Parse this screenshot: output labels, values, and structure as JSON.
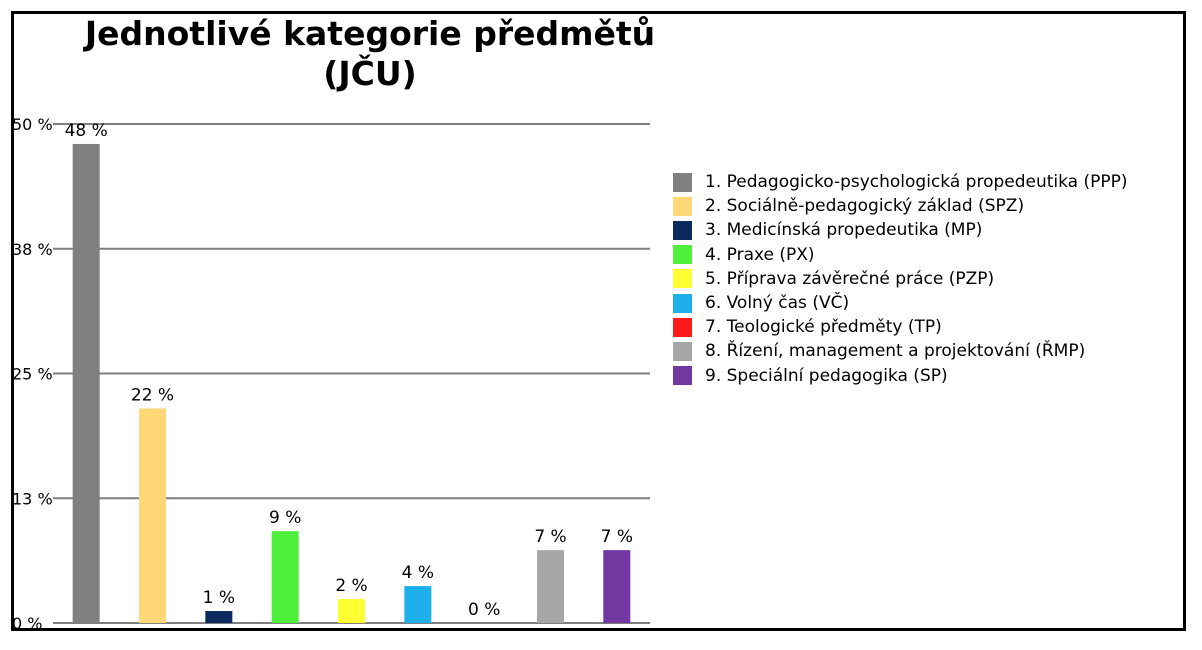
{
  "chart_data": {
    "type": "bar",
    "title": "Jednotlivé kategorie předmětů (JČU)",
    "title_lines": [
      "Jednotlivé kategorie předmětů",
      "(JČU)"
    ],
    "xlabel": "",
    "ylabel": "",
    "ylim": [
      0,
      50
    ],
    "yticks": [
      {
        "value": 0,
        "label": "0 %"
      },
      {
        "value": 12.5,
        "label": "13 %"
      },
      {
        "value": 25,
        "label": "25 %"
      },
      {
        "value": 37.5,
        "label": "38 %"
      },
      {
        "value": 50,
        "label": "50 %"
      }
    ],
    "grid": true,
    "legend_position": "right",
    "categories": [
      "1. Pedagogicko-psychologická propedeutika (PPP)",
      "2. Sociálně-pedagogický základ (SPZ)",
      "3. Medicínská propedeutika (MP)",
      "4. Praxe (PX)",
      "5. Příprava závěrečné práce (PZP)",
      "6. Volný čas (VČ)",
      "7. Teologické předměty (TP)",
      "8. Řízení, management a projektování (ŘMP)",
      "9. Speciální pedagogika (SP)"
    ],
    "values": [
      48,
      21.5,
      1.2,
      9.2,
      2.4,
      3.7,
      0,
      7.3,
      7.3
    ],
    "data_labels": [
      "48 %",
      "22 %",
      "1 %",
      "9 %",
      "2 %",
      "4 %",
      "0 %",
      "7 %",
      "7 %"
    ],
    "colors": [
      "#808080",
      "#FFD777",
      "#0D2A5E",
      "#4EF03C",
      "#FFFF33",
      "#1FAFEB",
      "#FF1A1A",
      "#A6A6A6",
      "#7038A0"
    ]
  }
}
